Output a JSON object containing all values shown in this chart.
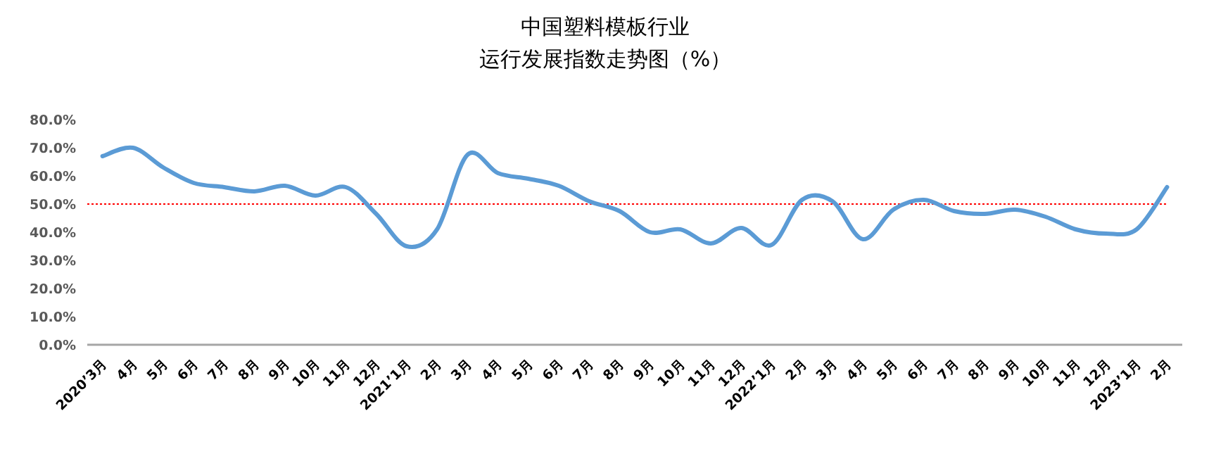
{
  "chart_data": {
    "type": "line",
    "title": "中国塑料模板行业",
    "subtitle": "运行发展指数走势图（%）",
    "categories": [
      "2020’3月",
      "4月",
      "5月",
      "6月",
      "7月",
      "8月",
      "9月",
      "10月",
      "11月",
      "12月",
      "2021’1月",
      "2月",
      "3月",
      "4月",
      "5月",
      "6月",
      "7月",
      "8月",
      "9月",
      "10月",
      "11月",
      "12月",
      "2022’1月",
      "2月",
      "3月",
      "4月",
      "5月",
      "6月",
      "7月",
      "8月",
      "9月",
      "10月",
      "11月",
      "12月",
      "2023’1月",
      "2月"
    ],
    "series": [
      {
        "color": "#5b9bd5",
        "values": [
          67,
          70,
          63,
          57.5,
          56,
          54.5,
          56.5,
          53,
          56,
          46.5,
          35,
          41,
          67.5,
          61,
          59,
          56.5,
          51,
          47.5,
          40,
          41,
          36,
          41.5,
          35.5,
          51.5,
          51,
          37.5,
          48,
          51.5,
          47.5,
          46.5,
          48,
          45.5,
          41,
          39.5,
          41,
          56
        ]
      }
    ],
    "ylim": [
      0,
      80
    ],
    "yticks": [
      {
        "value": 0,
        "label": "0.0%"
      },
      {
        "value": 10,
        "label": "10.0%"
      },
      {
        "value": 20,
        "label": "20.0%"
      },
      {
        "value": 30,
        "label": "30.0%"
      },
      {
        "value": 40,
        "label": "40.0%"
      },
      {
        "value": 50,
        "label": "50.0%"
      },
      {
        "value": 60,
        "label": "60.0%"
      },
      {
        "value": 70,
        "label": "70.0%"
      },
      {
        "value": 80,
        "label": "80.0%"
      }
    ],
    "ref_lines": [
      {
        "axis": "y",
        "value": 50,
        "color": "#ff0000",
        "line_style": "dotted"
      }
    ],
    "grid": false,
    "marker": "none",
    "line_style": "solid"
  }
}
